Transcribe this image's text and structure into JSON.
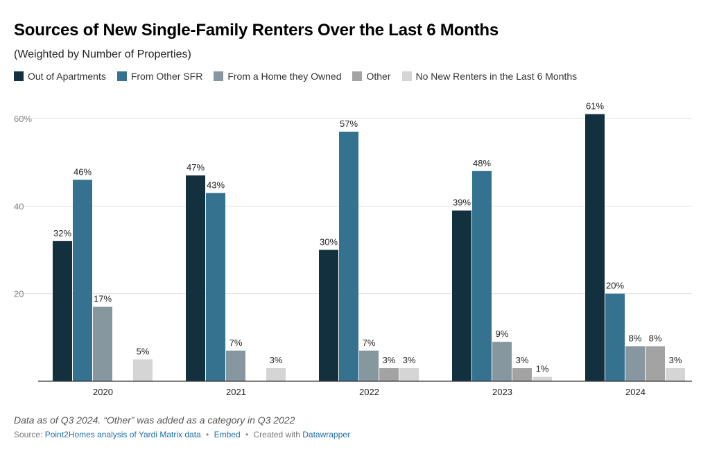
{
  "title": "Sources of New Single-Family Renters Over the Last 6 Months",
  "subtitle": "(Weighted by Number of Properties)",
  "footer": {
    "note": "Data as of Q3 2024. “Other” was added as a category in Q3 2022",
    "source_prefix": "Source:",
    "source_link": "Point2Homes analysis of Yardi Matrix data",
    "embed": "Embed",
    "created_prefix": "Created with",
    "created_link": "Datawrapper"
  },
  "chart_data": {
    "type": "bar",
    "categories": [
      "2020",
      "2021",
      "2022",
      "2023",
      "2024"
    ],
    "ylim": [
      0,
      60
    ],
    "yticks": [
      {
        "value": 20,
        "label": "20"
      },
      {
        "value": 40,
        "label": "40"
      },
      {
        "value": 60,
        "label": "60%"
      }
    ],
    "grid": true,
    "legend_position": "top-left",
    "series": [
      {
        "name": "Out of Apartments",
        "color": "#13303f",
        "values": [
          32,
          47,
          30,
          39,
          61
        ]
      },
      {
        "name": "From Other SFR",
        "color": "#347290",
        "values": [
          46,
          43,
          57,
          48,
          20
        ]
      },
      {
        "name": "From a Home they Owned",
        "color": "#8797a0",
        "values": [
          17,
          7,
          7,
          9,
          8
        ]
      },
      {
        "name": "Other",
        "color": "#a3a3a3",
        "values": [
          null,
          null,
          3,
          3,
          8
        ]
      },
      {
        "name": "No New Renters in the Last 6 Months",
        "color": "#d5d5d5",
        "values": [
          5,
          3,
          3,
          1,
          3
        ]
      }
    ],
    "value_suffix": "%"
  }
}
